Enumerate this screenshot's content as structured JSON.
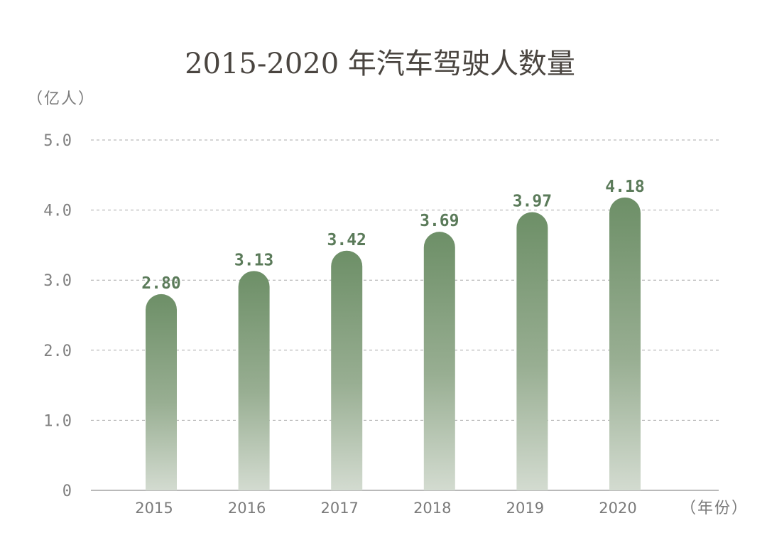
{
  "chart_data": {
    "type": "bar",
    "title": "2015-2020 年汽车驾驶人数量",
    "ylabel": "（亿人）",
    "xlabel": "（年份）",
    "categories": [
      "2015",
      "2016",
      "2017",
      "2018",
      "2019",
      "2020"
    ],
    "values": [
      2.8,
      3.13,
      3.42,
      3.69,
      3.97,
      4.18
    ],
    "value_labels": [
      "2.80",
      "3.13",
      "3.42",
      "3.69",
      "3.97",
      "4.18"
    ],
    "ylim": [
      0,
      5
    ],
    "yticks": [
      0,
      1,
      2,
      3,
      4,
      5
    ],
    "ytick_labels": [
      "0",
      "1.0",
      "2.0",
      "3.0",
      "4.0",
      "5.0"
    ],
    "grid": true,
    "legend": "none",
    "colors": {
      "bar_top": "#6d8f67",
      "bar_bottom": "#d3dbd0",
      "value_label": "#5b7b5a"
    }
  }
}
